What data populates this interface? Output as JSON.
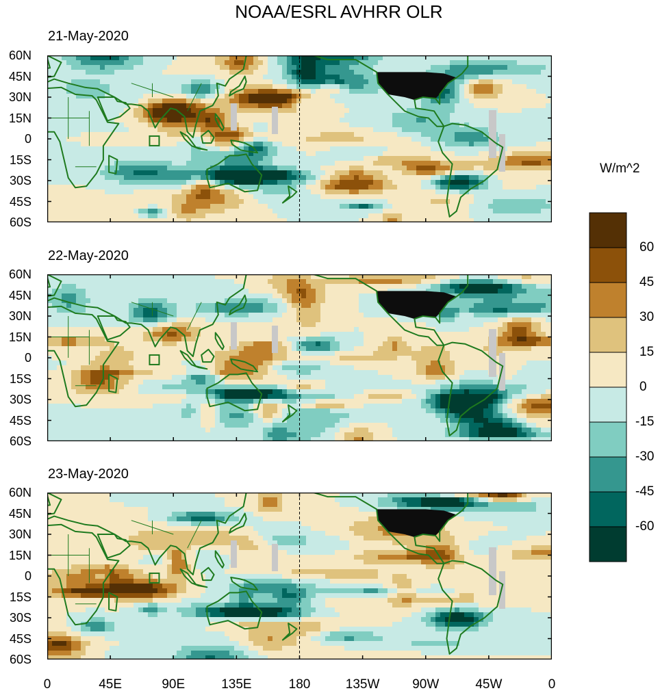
{
  "title": "NOAA/ESRL AVHRR OLR",
  "units": "W/m^2",
  "panels": [
    {
      "date": "21-May-2020"
    },
    {
      "date": "22-May-2020"
    },
    {
      "date": "23-May-2020"
    }
  ],
  "lat_ticks": [
    "60N",
    "45N",
    "30N",
    "15N",
    "0",
    "15S",
    "30S",
    "45S",
    "60S"
  ],
  "lon_ticks": [
    "0",
    "45E",
    "90E",
    "135E",
    "180",
    "135W",
    "90W",
    "45W",
    "0"
  ],
  "colorbar": {
    "labels": [
      "60",
      "45",
      "30",
      "15",
      "0",
      "-15",
      "-30",
      "-45",
      "-60"
    ],
    "colors": [
      "#543005",
      "#8c510a",
      "#bf812d",
      "#dfc27d",
      "#f6e8c3",
      "#c7eae5",
      "#80cdc1",
      "#35978f",
      "#01665e",
      "#003c30"
    ]
  },
  "colors": {
    "land_outline": "#1e7a1e",
    "missing": "#c8c8c8",
    "usa_dense": "#0d0d0d"
  }
}
